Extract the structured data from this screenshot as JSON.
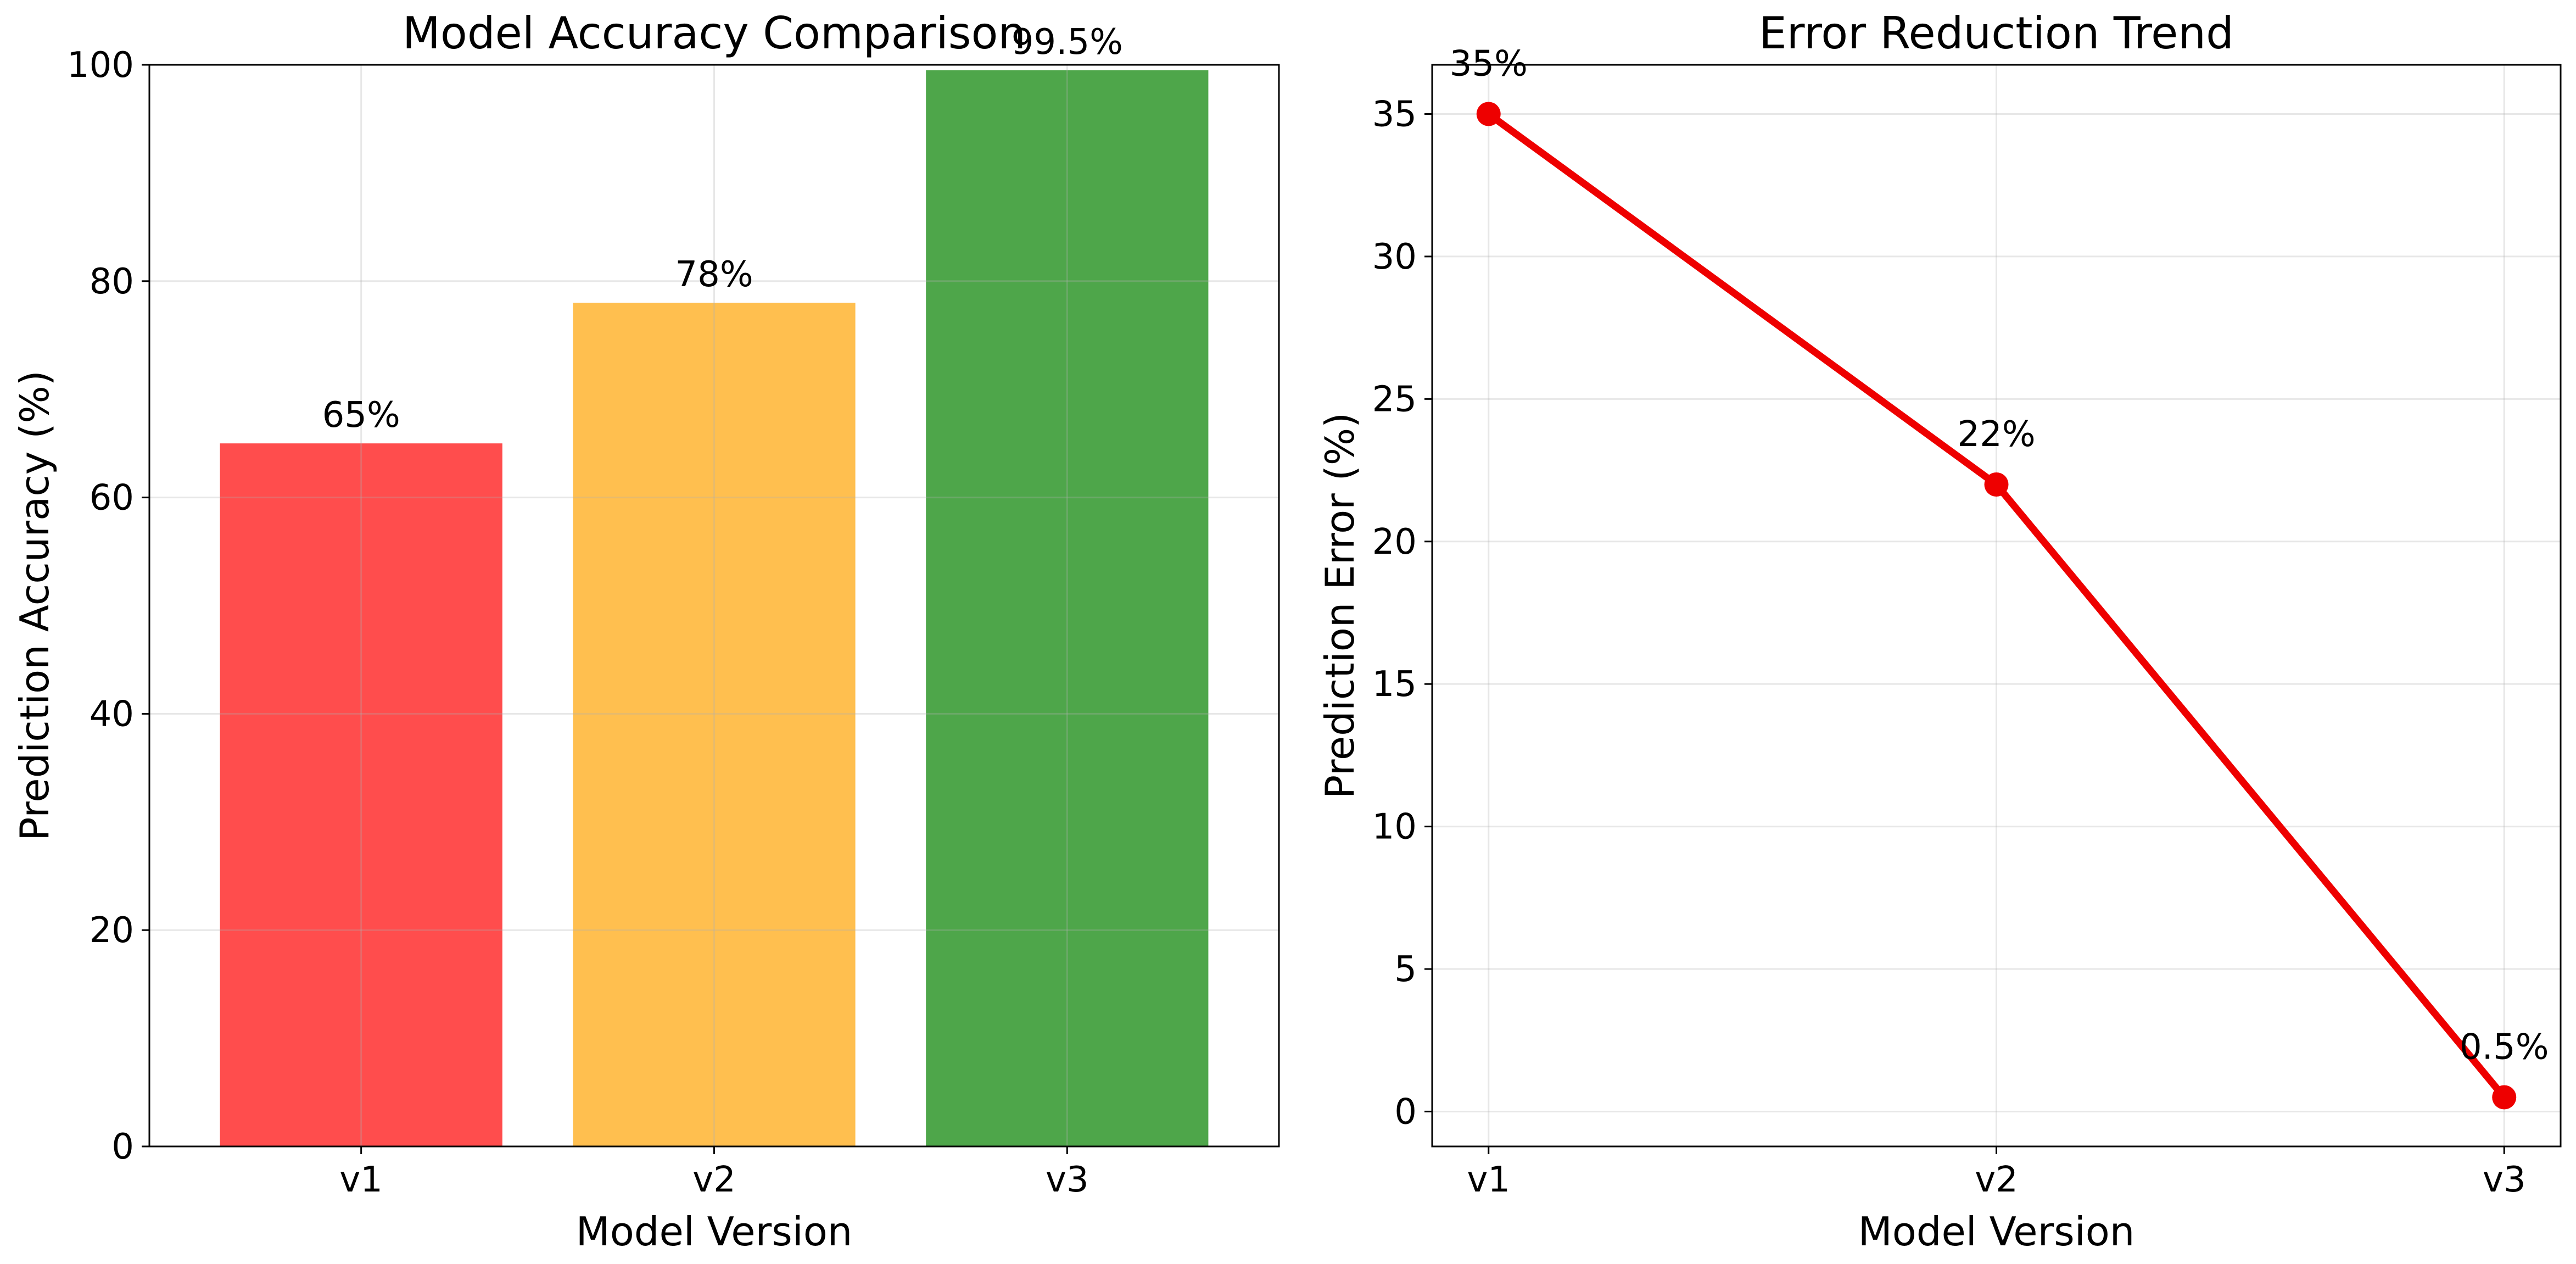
{
  "chart_data": [
    {
      "type": "bar",
      "title": "Model Accuracy Comparison",
      "xlabel": "Model Version",
      "ylabel": "Prediction Accuracy (%)",
      "categories": [
        "v1",
        "v2",
        "v3"
      ],
      "values": [
        65,
        78,
        99.5
      ],
      "value_labels": [
        "65%",
        "78%",
        "99.5%"
      ],
      "colors": [
        "#ff4d4d",
        "#ffbf4f",
        "#4ea64a"
      ],
      "ylim": [
        0,
        100
      ],
      "yticks": [
        0,
        20,
        40,
        60,
        80,
        100
      ],
      "grid": true
    },
    {
      "type": "line",
      "title": "Error Reduction Trend",
      "xlabel": "Model Version",
      "ylabel": "Prediction Error (%)",
      "categories": [
        "v1",
        "v2",
        "v3"
      ],
      "values": [
        35,
        22,
        0.5
      ],
      "value_labels": [
        "35%",
        "22%",
        "0.5%"
      ],
      "color": "#ee0000",
      "ylim": [
        -1.225,
        36.725
      ],
      "yticks": [
        0,
        5,
        10,
        15,
        20,
        25,
        30,
        35
      ],
      "grid": true
    }
  ]
}
